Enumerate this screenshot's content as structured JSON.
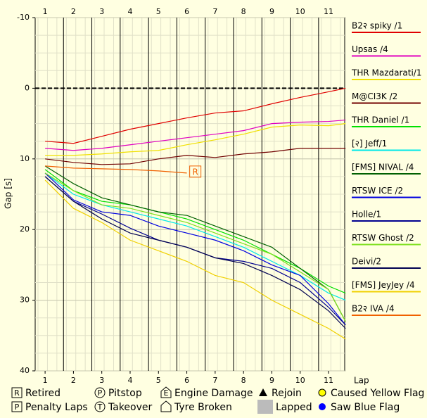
{
  "chart_data": {
    "type": "line",
    "y_label": "Gap [s]",
    "x_label": "Lap",
    "x": [
      1,
      2,
      3,
      4,
      5,
      6,
      7,
      8,
      9,
      10,
      11,
      11.6
    ],
    "xlim": [
      0.65,
      11.57
    ],
    "xticks": [
      1,
      2,
      3,
      4,
      5,
      6,
      7,
      8,
      9,
      10,
      11
    ],
    "ylim": [
      -10,
      40
    ],
    "yticks": [
      -10,
      0,
      10,
      20,
      30,
      40
    ],
    "y_inverted": true,
    "grid": true,
    "legend": "right",
    "series": [
      {
        "name": "B2२ spiky /1",
        "color": "#e00000",
        "values": [
          7.5,
          7.8,
          6.8,
          5.8,
          5,
          4.2,
          3.5,
          3.2,
          2.2,
          1.3,
          0.5,
          0
        ]
      },
      {
        "name": "Upsas /4",
        "color": "#e000c0",
        "values": [
          8.5,
          8.8,
          8.5,
          8,
          7.5,
          7,
          6.5,
          6,
          5,
          4.8,
          4.7,
          4.5
        ]
      },
      {
        "name": "THR Mazdarati/1",
        "color": "#f0e000",
        "values": [
          9.5,
          9.5,
          9.3,
          9,
          8.8,
          8,
          7.3,
          6.5,
          5.5,
          5.2,
          5.3,
          5
        ]
      },
      {
        "name": "M@CI3K /2",
        "color": "#700000",
        "values": [
          10,
          10.5,
          10.8,
          10.7,
          10,
          9.5,
          9.8,
          9.3,
          9,
          8.5,
          8.5,
          8.5
        ]
      },
      {
        "name": "THR Daniel /1",
        "color": "#00e000",
        "values": [
          11.5,
          14.5,
          16,
          16.5,
          17.5,
          18.5,
          20,
          21.5,
          23.5,
          25.5,
          28,
          29
        ]
      },
      {
        "name": "[२] Jeff/1",
        "color": "#00e8e8",
        "values": [
          12,
          15,
          16.5,
          17.5,
          18.5,
          19.5,
          21,
          22.5,
          24.5,
          26.5,
          29,
          30
        ]
      },
      {
        "name": "[FMS] NIVAL /4",
        "color": "#006000",
        "values": [
          11,
          13.5,
          15.5,
          16.5,
          17.5,
          18,
          19.5,
          21,
          22.5,
          25.5,
          28.5,
          33
        ]
      },
      {
        "name": "RTSW ICE /2",
        "color": "#0000e0",
        "values": [
          12,
          15.8,
          17.5,
          18,
          19.5,
          20.5,
          21.5,
          23,
          25,
          26.5,
          30.5,
          33.5
        ]
      },
      {
        "name": "Holle/1",
        "color": "#000090",
        "values": [
          12.5,
          16,
          17.8,
          19.8,
          21.5,
          22.5,
          24,
          24.5,
          25.5,
          27.5,
          31,
          33.5
        ]
      },
      {
        "name": "RTSW Ghost /2",
        "color": "#80e020",
        "values": [
          12,
          14.5,
          16.5,
          17,
          18,
          19,
          20.5,
          22,
          23.5,
          26,
          28.5,
          33
        ]
      },
      {
        "name": "Deivi/2",
        "color": "#000050",
        "values": [
          12.5,
          16,
          18.5,
          20.5,
          21.5,
          22.5,
          24,
          24.8,
          26.5,
          28.5,
          31.5,
          34
        ]
      },
      {
        "name": "[FMS] JeyJey /4",
        "color": "#f0d000",
        "values": [
          13,
          17,
          19,
          21.5,
          23,
          24.5,
          26.5,
          27.5,
          30,
          32,
          34,
          35.5
        ]
      },
      {
        "name": "B2२ IVA /4",
        "color": "#f06000",
        "values": [
          11,
          11.3,
          11.4,
          11.5,
          11.7,
          12,
          null,
          null,
          null,
          null,
          null,
          null
        ]
      }
    ],
    "markers": [
      {
        "label": "R",
        "x": 6.3,
        "y": 11.8,
        "color": "#f06000"
      }
    ],
    "key": [
      {
        "label": "Retired",
        "symbol": "R"
      },
      {
        "label": "Penalty Laps",
        "symbol": "P"
      },
      {
        "label": "Pitstop",
        "symbol": "P"
      },
      {
        "label": "Takeover",
        "symbol": "T"
      },
      {
        "label": "Engine Damage",
        "symbol": "E"
      },
      {
        "label": "Tyre Broken"
      },
      {
        "label": "Rejoin"
      },
      {
        "label": "Lapped"
      },
      {
        "label": "Caused Yellow Flag"
      },
      {
        "label": "Saw Blue Flag"
      }
    ]
  }
}
